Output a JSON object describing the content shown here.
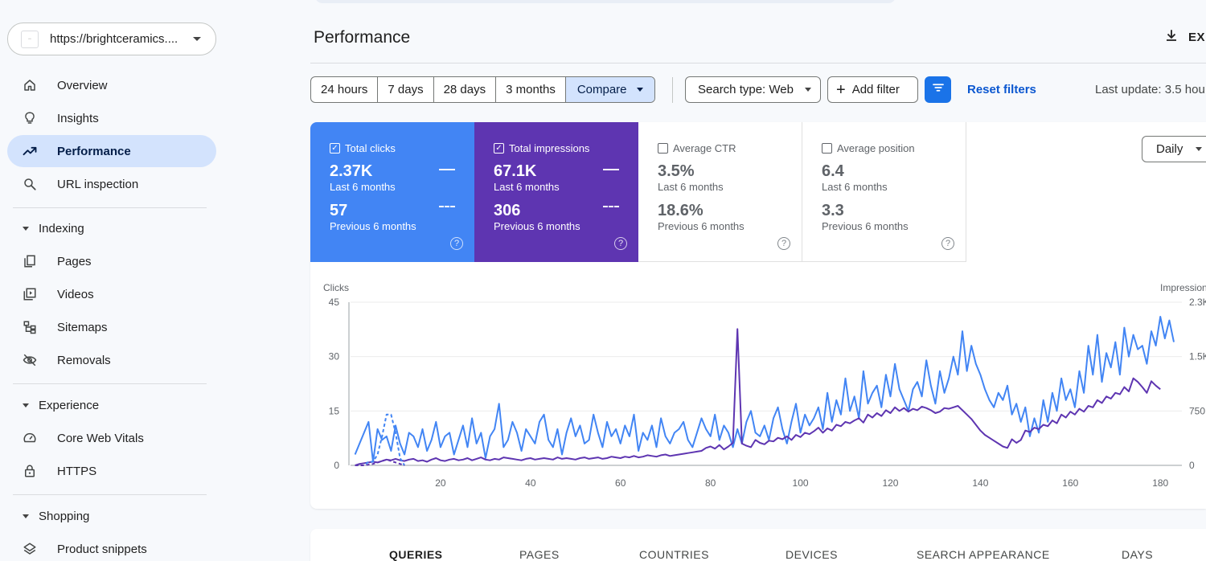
{
  "property": {
    "url": "https://brightceramics...."
  },
  "sidebar": {
    "items": [
      {
        "label": "Overview",
        "icon": "home-icon"
      },
      {
        "label": "Insights",
        "icon": "lightbulb-icon"
      },
      {
        "label": "Performance",
        "icon": "trending-up-icon",
        "active": true
      },
      {
        "label": "URL inspection",
        "icon": "search-icon"
      }
    ],
    "indexing": {
      "title": "Indexing",
      "items": [
        {
          "label": "Pages",
          "icon": "pages-icon"
        },
        {
          "label": "Videos",
          "icon": "video-icon"
        },
        {
          "label": "Sitemaps",
          "icon": "sitemap-icon"
        },
        {
          "label": "Removals",
          "icon": "eye-off-icon"
        }
      ]
    },
    "experience": {
      "title": "Experience",
      "items": [
        {
          "label": "Core Web Vitals",
          "icon": "gauge-icon"
        },
        {
          "label": "HTTPS",
          "icon": "lock-icon"
        }
      ]
    },
    "shopping": {
      "title": "Shopping",
      "items": [
        {
          "label": "Product snippets",
          "icon": "layers-icon"
        }
      ]
    }
  },
  "header": {
    "title": "Performance",
    "export_label": "EXP"
  },
  "filters": {
    "ranges": [
      "24 hours",
      "7 days",
      "28 days",
      "3 months"
    ],
    "compare_label": "Compare",
    "search_type": "Search type: Web",
    "add_filter": "Add filter",
    "reset": "Reset filters",
    "last_update": "Last update: 3.5 hou"
  },
  "metrics": [
    {
      "label": "Total clicks",
      "value": "2.37K",
      "period": "Last 6 months",
      "prev_value": "57",
      "prev_period": "Previous 6 months",
      "checked": true,
      "color": "#4285f4"
    },
    {
      "label": "Total impressions",
      "value": "67.1K",
      "period": "Last 6 months",
      "prev_value": "306",
      "prev_period": "Previous 6 months",
      "checked": true,
      "color": "#5e35b1"
    },
    {
      "label": "Average CTR",
      "value": "3.5%",
      "period": "Last 6 months",
      "prev_value": "18.6%",
      "prev_period": "Previous 6 months",
      "checked": false
    },
    {
      "label": "Average position",
      "value": "6.4",
      "period": "Last 6 months",
      "prev_value": "3.3",
      "prev_period": "Previous 6 months",
      "checked": false
    }
  ],
  "granularity": "Daily",
  "tabs": [
    "QUERIES",
    "PAGES",
    "COUNTRIES",
    "DEVICES",
    "SEARCH APPEARANCE",
    "DAYS"
  ],
  "chart_data": {
    "type": "line",
    "left_axis_label": "Clicks",
    "right_axis_label": "Impression",
    "left_ticks": [
      "0",
      "15",
      "30",
      "45"
    ],
    "right_ticks": [
      "0",
      "750",
      "1.5K",
      "2.3K"
    ],
    "x_ticks": [
      "20",
      "40",
      "60",
      "80",
      "100",
      "120",
      "140",
      "160",
      "180"
    ],
    "ylim_left": [
      0,
      45
    ],
    "ylim_right": [
      0,
      2250
    ],
    "xlim": [
      0,
      183
    ],
    "grid": true,
    "series": [
      {
        "name": "Total clicks",
        "color": "#4285f4",
        "axis": "left",
        "style": "solid",
        "x_start": 1,
        "values": [
          3,
          6,
          9,
          12,
          1,
          10,
          7,
          8,
          4,
          11,
          6,
          3,
          9,
          8,
          5,
          10,
          4,
          7,
          12,
          5,
          8,
          9,
          3,
          7,
          11,
          5,
          13,
          6,
          9,
          2,
          8,
          10,
          17,
          5,
          7,
          12,
          9,
          4,
          10,
          8,
          6,
          12,
          14,
          7,
          5,
          10,
          3,
          9,
          13,
          8,
          11,
          6,
          7,
          14,
          9,
          5,
          12,
          8,
          10,
          6,
          11,
          8,
          14,
          4,
          9,
          7,
          11,
          5,
          13,
          8,
          6,
          9,
          10,
          12,
          7,
          5,
          9,
          13,
          10,
          8,
          14,
          7,
          11,
          9,
          5,
          10,
          6,
          12,
          15,
          9,
          8,
          11,
          7,
          13,
          16,
          10,
          6,
          12,
          17,
          9,
          14,
          11,
          13,
          16,
          10,
          20,
          12,
          18,
          14,
          24,
          15,
          19,
          13,
          26,
          17,
          20,
          22,
          16,
          25,
          19,
          28,
          21,
          18,
          15,
          21,
          23,
          19,
          29,
          22,
          17,
          26,
          20,
          24,
          30,
          25,
          37,
          26,
          33,
          28,
          25,
          21,
          18,
          16,
          20,
          18,
          22,
          14,
          17,
          12,
          16,
          8,
          13,
          9,
          18,
          12,
          20,
          15,
          24,
          18,
          21,
          16,
          26,
          20,
          33,
          25,
          36,
          23,
          31,
          27,
          34,
          25,
          38,
          30,
          36,
          32,
          33,
          28,
          37,
          33,
          41,
          35,
          40,
          34
        ],
        "annotations": {}
      },
      {
        "name": "Total impressions",
        "color": "#5e35b1",
        "axis": "right",
        "style": "solid",
        "x_start": 1,
        "values": [
          0,
          20,
          30,
          40,
          50,
          40,
          60,
          80,
          70,
          90,
          70,
          60,
          80,
          90,
          60,
          70,
          50,
          80,
          100,
          70,
          60,
          80,
          90,
          70,
          80,
          100,
          70,
          90,
          110,
          80,
          70,
          90,
          80,
          110,
          100,
          90,
          80,
          70,
          90,
          100,
          80,
          90,
          100,
          90,
          80,
          110,
          90,
          100,
          90,
          80,
          100,
          110,
          90,
          100,
          110,
          90,
          100,
          120,
          110,
          100,
          120,
          110,
          130,
          110,
          120,
          140,
          130,
          120,
          140,
          150,
          130,
          140,
          150,
          160,
          170,
          180,
          190,
          200,
          240,
          260,
          230,
          280,
          220,
          260,
          310,
          1880,
          300,
          270,
          250,
          350,
          310,
          290,
          340,
          330,
          380,
          360,
          400,
          350,
          420,
          390,
          450,
          430,
          470,
          520,
          450,
          510,
          480,
          560,
          540,
          600,
          580,
          620,
          650,
          590,
          700,
          660,
          720,
          680,
          760,
          720,
          800,
          750,
          790,
          740,
          780,
          760,
          810,
          790,
          760,
          720,
          740,
          790,
          780,
          800,
          820,
          760,
          700,
          640,
          560,
          480,
          420,
          380,
          340,
          300,
          260,
          240,
          360,
          310,
          350,
          480,
          460,
          520,
          500,
          560,
          540,
          620,
          580,
          700,
          660,
          740,
          700,
          780,
          740,
          820,
          800,
          900,
          860,
          950,
          920,
          1000,
          980,
          1080,
          1020,
          1200,
          1150,
          1080,
          1000,
          1160,
          1100,
          1050
        ],
        "annotations": {}
      },
      {
        "name": "Previous 6 months clicks",
        "color": "#4285f4",
        "axis": "left",
        "style": "dashed",
        "x_start": 1,
        "values": [
          0,
          0,
          0,
          1,
          1,
          3,
          8,
          14,
          14,
          9,
          2,
          0
        ],
        "annotations": {}
      },
      {
        "name": "Previous 6 months impressions",
        "color": "#5e35b1",
        "axis": "right",
        "style": "dashed",
        "x_start": 1,
        "values": [
          0,
          0,
          0,
          10,
          20,
          40,
          60,
          80,
          60,
          40,
          20,
          0
        ],
        "annotations": {}
      }
    ]
  }
}
